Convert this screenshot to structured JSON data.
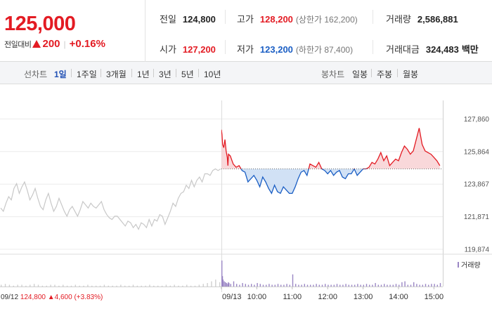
{
  "summary": {
    "price": "125,000",
    "change_label": "전일대비",
    "change_amount": "200",
    "change_percent": "+0.16%",
    "stats": {
      "prev_close": {
        "label": "전일",
        "value": "124,800"
      },
      "high": {
        "label": "고가",
        "value": "128,200",
        "sub": "(상한가 162,200)"
      },
      "volume": {
        "label": "거래량",
        "value": "2,586,881"
      },
      "open": {
        "label": "시가",
        "value": "127,200"
      },
      "low": {
        "label": "저가",
        "value": "123,200",
        "sub": "(하한가 87,400)"
      },
      "amount": {
        "label": "거래대금",
        "value": "324,483",
        "unit": "백만"
      }
    }
  },
  "toolbar": {
    "line_chart_label": "선차트",
    "line_periods": [
      "1일",
      "1주일",
      "3개월",
      "1년",
      "3년",
      "5년",
      "10년"
    ],
    "active_line_period": "1일",
    "candle_chart_label": "봉차트",
    "candle_periods": [
      "일봉",
      "주봉",
      "월봉"
    ]
  },
  "colors": {
    "up": "#e31b23",
    "down": "#1a5ec4",
    "prev_day": "#c8c8c8",
    "volume": "#9a86c4"
  },
  "chart_data": {
    "type": "line",
    "title": "",
    "ylabel": "",
    "ylim": [
      119874,
      128350
    ],
    "y_ticks": [
      "127,860",
      "125,864",
      "123,867",
      "121,871",
      "119,874"
    ],
    "y_tick_values": [
      127860,
      125864,
      123867,
      121871,
      119874
    ],
    "x_ticks": [
      "09/13",
      "10:00",
      "11:00",
      "12:00",
      "13:00",
      "14:00",
      "15:00"
    ],
    "x_tick_times": [
      540,
      600,
      660,
      720,
      780,
      840,
      900
    ],
    "prev_close": 124800,
    "prev_close_label": "09/12  124,800 ▲4,600 (+3.83%)",
    "prev_day_label": "09/12",
    "prev_day_close_text": "124,800",
    "prev_day_change_text": "▲4,600 (+3.83%)",
    "prev_day_series": [
      122400,
      122200,
      122700,
      123100,
      122900,
      123600,
      123900,
      123300,
      123700,
      124000,
      123500,
      122900,
      123200,
      123600,
      123000,
      122500,
      122300,
      122900,
      123300,
      122700,
      122200,
      122500,
      123000,
      122600,
      122200,
      121900,
      122300,
      122500,
      122200,
      121900,
      122300,
      122800,
      122600,
      122400,
      122700,
      122500,
      122400,
      122600,
      122800,
      122300,
      122000,
      121800,
      121700,
      121900,
      121900,
      121700,
      121500,
      121300,
      121600,
      121500,
      121200,
      121400,
      121100,
      121500,
      121400,
      121200,
      121700,
      121300,
      121700,
      121600,
      122000,
      121900,
      121400,
      121800,
      122200,
      122700,
      122500,
      123000,
      123300,
      123400,
      123800,
      123600,
      124100,
      123700,
      124100,
      124300,
      124000,
      124500,
      124500,
      124400,
      124700,
      124800,
      124700,
      124800
    ],
    "today_times": [
      540,
      541,
      542,
      544,
      546,
      548,
      550,
      551,
      552,
      555,
      560,
      565,
      570,
      575,
      580,
      585,
      590,
      595,
      600,
      605,
      610,
      615,
      620,
      625,
      630,
      635,
      640,
      645,
      650,
      655,
      660,
      665,
      670,
      675,
      680,
      685,
      690,
      695,
      700,
      705,
      710,
      715,
      720,
      725,
      730,
      735,
      740,
      745,
      750,
      755,
      760,
      765,
      770,
      775,
      780,
      785,
      790,
      795,
      800,
      805,
      810,
      815,
      820,
      825,
      830,
      835,
      840,
      845,
      850,
      855,
      860,
      865,
      870,
      875,
      880,
      885,
      890,
      895,
      900,
      905,
      910
    ],
    "today_values": [
      127200,
      126900,
      126300,
      126100,
      126600,
      125900,
      125500,
      125000,
      125700,
      125600,
      125100,
      124900,
      125000,
      124700,
      124600,
      124000,
      124200,
      124400,
      124100,
      123700,
      124300,
      124000,
      123600,
      123300,
      123800,
      123400,
      123300,
      123700,
      123500,
      123300,
      123300,
      123700,
      124200,
      124600,
      124700,
      124400,
      125100,
      125000,
      124900,
      125200,
      124800,
      124700,
      124500,
      124700,
      124400,
      124600,
      124700,
      124300,
      124200,
      124500,
      124500,
      124800,
      124400,
      124600,
      124800,
      124800,
      124900,
      125200,
      125100,
      125400,
      125800,
      125300,
      125600,
      125000,
      125200,
      125400,
      125300,
      125800,
      126200,
      126000,
      125700,
      125900,
      126600,
      127300,
      126300,
      125900,
      125800,
      125700,
      125500,
      125300,
      125000
    ],
    "volume_legend": "거래량",
    "prev_day_volume": [
      2,
      3,
      2,
      1,
      2,
      2,
      1,
      2,
      3,
      2,
      1,
      1,
      2,
      2,
      1,
      2,
      1,
      1,
      2,
      1,
      1,
      2,
      1,
      1,
      1,
      2,
      1,
      1,
      1,
      2,
      1,
      1,
      2,
      1,
      1,
      1,
      2,
      1,
      1,
      1,
      2,
      1,
      2,
      1,
      1,
      2,
      1,
      1,
      2,
      3,
      4,
      6,
      8,
      5
    ],
    "today_volume": [
      30,
      12,
      8,
      6,
      5,
      4,
      3,
      5,
      4,
      3,
      6,
      3,
      2,
      4,
      3,
      2,
      3,
      2,
      4,
      3,
      2,
      2,
      3,
      2,
      2,
      3,
      2,
      2,
      3,
      2,
      14,
      3,
      2,
      2,
      3,
      2,
      2,
      2,
      3,
      2,
      2,
      3,
      2,
      2,
      2,
      3,
      2,
      2,
      3,
      2,
      2,
      2,
      3,
      2,
      2,
      3,
      2,
      2,
      4,
      2,
      2,
      3,
      2,
      2,
      2,
      3,
      2,
      5,
      6,
      2,
      2,
      5,
      3,
      2,
      2,
      3,
      2,
      3,
      3,
      2,
      4
    ]
  }
}
